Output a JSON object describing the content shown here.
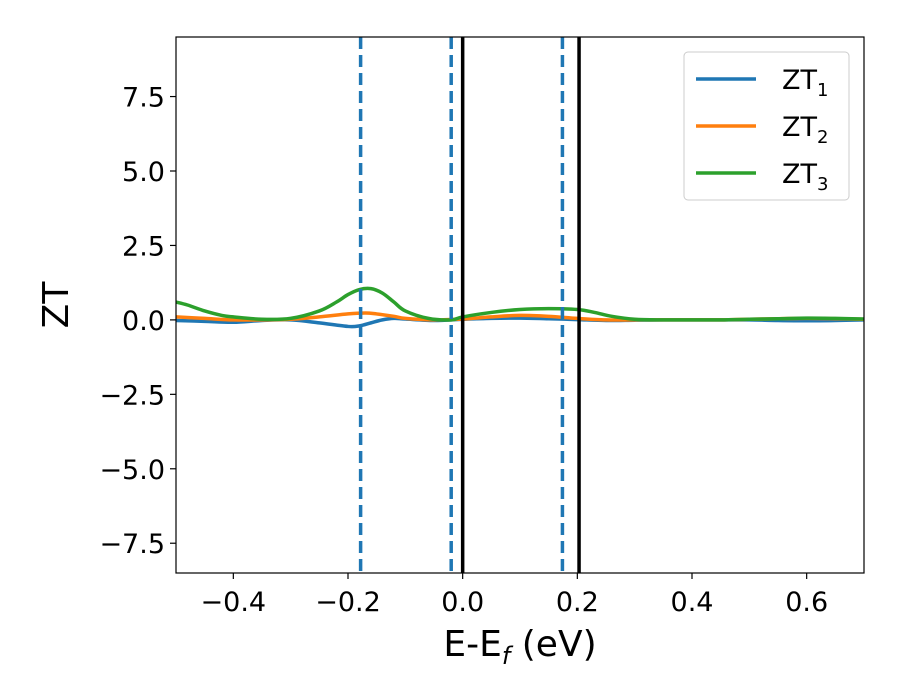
{
  "chart_data": {
    "type": "line",
    "xlabel": {
      "main": "E-E",
      "sub": "f",
      "tail": " (eV)"
    },
    "ylabel": "ZT",
    "xlim": [
      -0.5,
      0.7
    ],
    "ylim": [
      -8.5,
      9.5
    ],
    "xticks": [
      -0.4,
      -0.2,
      0.0,
      0.2,
      0.4,
      0.6
    ],
    "xtick_labels": [
      "−0.4",
      "−0.2",
      "0.0",
      "0.2",
      "0.4",
      "0.6"
    ],
    "yticks": [
      -7.5,
      -5.0,
      -2.5,
      0.0,
      2.5,
      5.0,
      7.5
    ],
    "ytick_labels": [
      "−7.5",
      "−5.0",
      "−2.5",
      "0.0",
      "2.5",
      "5.0",
      "7.5"
    ],
    "legend_position": "top-right",
    "grid": false,
    "series": [
      {
        "name": "ZT",
        "name_sub": "1",
        "color": "#1f77b4",
        "x": [
          -0.5,
          -0.45,
          -0.4,
          -0.35,
          -0.3,
          -0.25,
          -0.2,
          -0.18,
          -0.16,
          -0.14,
          -0.12,
          -0.1,
          -0.05,
          0.0,
          0.05,
          0.1,
          0.15,
          0.2,
          0.25,
          0.3,
          0.35,
          0.4,
          0.45,
          0.5,
          0.55,
          0.6,
          0.65,
          0.7
        ],
        "y": [
          -0.02,
          -0.05,
          -0.08,
          -0.02,
          0.0,
          -0.1,
          -0.22,
          -0.2,
          -0.1,
          0.0,
          0.05,
          0.03,
          -0.02,
          0.02,
          0.05,
          0.06,
          0.04,
          0.01,
          -0.02,
          -0.01,
          0.0,
          0.0,
          0.0,
          0.0,
          -0.02,
          -0.03,
          -0.02,
          0.0
        ]
      },
      {
        "name": "ZT",
        "name_sub": "2",
        "color": "#ff7f0e",
        "x": [
          -0.5,
          -0.45,
          -0.4,
          -0.35,
          -0.3,
          -0.25,
          -0.2,
          -0.17,
          -0.15,
          -0.12,
          -0.1,
          -0.05,
          0.0,
          0.05,
          0.1,
          0.15,
          0.2,
          0.25,
          0.3,
          0.35,
          0.4,
          0.45,
          0.5,
          0.55,
          0.6,
          0.65,
          0.7
        ],
        "y": [
          0.1,
          0.05,
          0.0,
          0.0,
          0.02,
          0.1,
          0.2,
          0.23,
          0.2,
          0.12,
          0.05,
          0.0,
          0.03,
          0.1,
          0.15,
          0.12,
          0.05,
          0.0,
          0.0,
          0.0,
          0.0,
          0.0,
          0.02,
          0.04,
          0.05,
          0.04,
          0.02
        ]
      },
      {
        "name": "ZT",
        "name_sub": "3",
        "color": "#2ca02c",
        "x": [
          -0.5,
          -0.48,
          -0.45,
          -0.42,
          -0.4,
          -0.35,
          -0.3,
          -0.25,
          -0.22,
          -0.2,
          -0.18,
          -0.16,
          -0.14,
          -0.12,
          -0.1,
          -0.06,
          -0.02,
          0.0,
          0.05,
          0.1,
          0.15,
          0.2,
          0.23,
          0.26,
          0.3,
          0.35,
          0.4,
          0.45,
          0.5,
          0.55,
          0.6,
          0.65,
          0.7
        ],
        "y": [
          0.6,
          0.5,
          0.3,
          0.15,
          0.1,
          0.02,
          0.05,
          0.3,
          0.6,
          0.85,
          1.02,
          1.05,
          0.9,
          0.6,
          0.3,
          0.05,
          0.0,
          0.1,
          0.25,
          0.35,
          0.38,
          0.35,
          0.25,
          0.12,
          0.02,
          0.0,
          0.0,
          0.0,
          0.02,
          0.04,
          0.06,
          0.05,
          0.03
        ]
      }
    ],
    "vlines": [
      {
        "x": -0.178,
        "style": "dashed",
        "color": "#1f77b4"
      },
      {
        "x": -0.02,
        "style": "dashed",
        "color": "#1f77b4"
      },
      {
        "x": 0.174,
        "style": "dashed",
        "color": "#1f77b4"
      },
      {
        "x": 0.0,
        "style": "solid",
        "color": "#000000"
      },
      {
        "x": 0.203,
        "style": "solid",
        "color": "#000000"
      }
    ]
  }
}
